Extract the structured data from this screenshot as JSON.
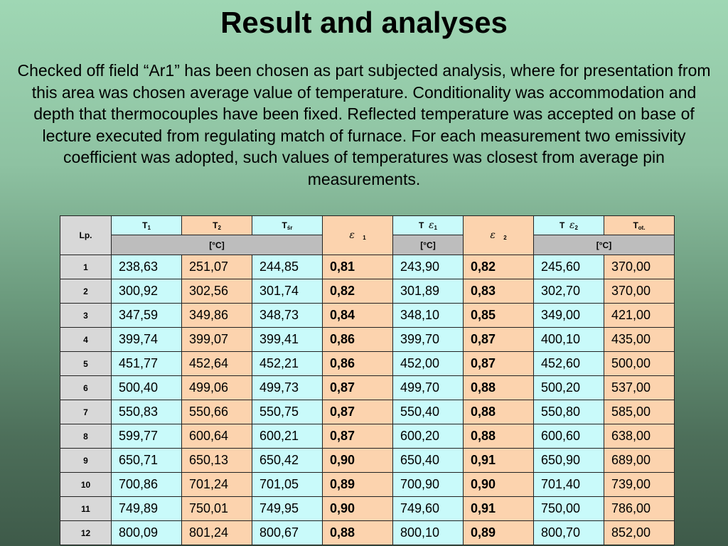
{
  "title": "Result and analyses",
  "paragraph": "Checked off field “Ar1” has been chosen as part subjected analysis, where for presentation from this area was chosen average value of temperature. Conditionality was accommodation and depth that thermocouples have been fixed. Reflected temperature was accepted on base of lecture executed from regulating match of furnace. For each measurement two emissivity coefficient was adopted, such values of temperatures was closest from average pin measurements.",
  "table": {
    "headers": {
      "lp": "Lp.",
      "t1": "T",
      "t1_sub": "1",
      "t2": "T",
      "t2_sub": "2",
      "tsr": "T",
      "tsr_sub": "śr",
      "e1_sub": "1",
      "te1": "T",
      "te1_sub": "1",
      "e2_sub": "2",
      "te2": "T",
      "te2_sub": "2",
      "tot": "T",
      "tot_sub": "ot.",
      "unit1": "[°C]",
      "unit2": "[°C]",
      "unit3": "[°C]",
      "epsilon": "ε"
    },
    "rows": [
      {
        "lp": "1",
        "t1": "238,63",
        "t2": "251,07",
        "tsr": "244,85",
        "e1": "0,81",
        "te1": "243,90",
        "e2": "0,82",
        "te2": "245,60",
        "tot": "370,00"
      },
      {
        "lp": "2",
        "t1": "300,92",
        "t2": "302,56",
        "tsr": "301,74",
        "e1": "0,82",
        "te1": "301,89",
        "e2": "0,83",
        "te2": "302,70",
        "tot": "370,00"
      },
      {
        "lp": "3",
        "t1": "347,59",
        "t2": "349,86",
        "tsr": "348,73",
        "e1": "0,84",
        "te1": "348,10",
        "e2": "0,85",
        "te2": "349,00",
        "tot": "421,00"
      },
      {
        "lp": "4",
        "t1": "399,74",
        "t2": "399,07",
        "tsr": "399,41",
        "e1": "0,86",
        "te1": "399,70",
        "e2": "0,87",
        "te2": "400,10",
        "tot": "435,00"
      },
      {
        "lp": "5",
        "t1": "451,77",
        "t2": "452,64",
        "tsr": "452,21",
        "e1": "0,86",
        "te1": "452,00",
        "e2": "0,87",
        "te2": "452,60",
        "tot": "500,00"
      },
      {
        "lp": "6",
        "t1": "500,40",
        "t2": "499,06",
        "tsr": "499,73",
        "e1": "0,87",
        "te1": "499,70",
        "e2": "0,88",
        "te2": "500,20",
        "tot": "537,00"
      },
      {
        "lp": "7",
        "t1": "550,83",
        "t2": "550,66",
        "tsr": "550,75",
        "e1": "0,87",
        "te1": "550,40",
        "e2": "0,88",
        "te2": "550,80",
        "tot": "585,00"
      },
      {
        "lp": "8",
        "t1": "599,77",
        "t2": "600,64",
        "tsr": "600,21",
        "e1": "0,87",
        "te1": "600,20",
        "e2": "0,88",
        "te2": "600,60",
        "tot": "638,00"
      },
      {
        "lp": "9",
        "t1": "650,71",
        "t2": "650,13",
        "tsr": "650,42",
        "e1": "0,90",
        "te1": "650,40",
        "e2": "0,91",
        "te2": "650,90",
        "tot": "689,00"
      },
      {
        "lp": "10",
        "t1": "700,86",
        "t2": "701,24",
        "tsr": "701,05",
        "e1": "0,89",
        "te1": "700,90",
        "e2": "0,90",
        "te2": "701,40",
        "tot": "739,00"
      },
      {
        "lp": "11",
        "t1": "749,89",
        "t2": "750,01",
        "tsr": "749,95",
        "e1": "0,90",
        "te1": "749,60",
        "e2": "0,91",
        "te2": "750,00",
        "tot": "786,00"
      },
      {
        "lp": "12",
        "t1": "800,09",
        "t2": "801,24",
        "tsr": "800,67",
        "e1": "0,88",
        "te1": "800,10",
        "e2": "0,89",
        "te2": "800,70",
        "tot": "852,00"
      }
    ],
    "colors": {
      "cyan": "#c9fafa",
      "orange": "#fcd3ae",
      "gray": "#d8d8d8",
      "unit_gray": "#bdbdbd"
    }
  }
}
